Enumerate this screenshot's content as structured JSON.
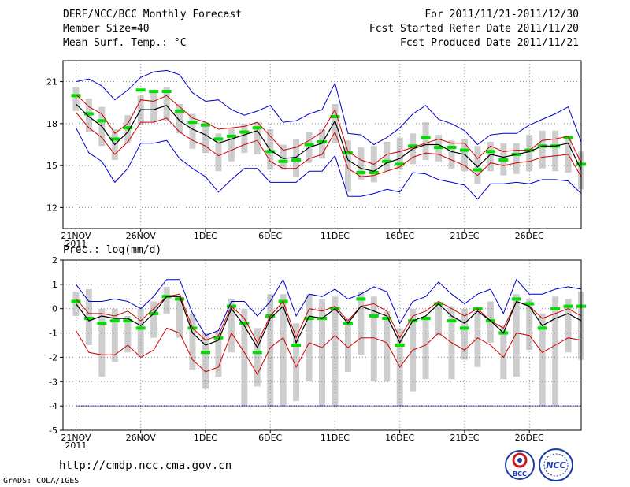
{
  "header": {
    "title": "DERF/NCC/BCC Monthly Forecast",
    "member": "Member Size=40",
    "temp_label": "Mean Surf. Temp.: °C",
    "period": "For 2011/11/21-2011/12/30",
    "started": "Fcst Started Refer Date 2011/11/20",
    "produced": "Fcst Produced Date 2011/11/21"
  },
  "prec_label": "Prec.: log(mm/d)",
  "footer": {
    "url": "http://cmdp.ncc.cma.gov.cn",
    "credit": "GrADS: COLA/IGES",
    "bcc_logo": "BCC",
    "ncc_logo": "NCC"
  },
  "colors": {
    "mean": "#000000",
    "spread": "#cc0000",
    "range": "#0000cc",
    "box": "#cdcdcd",
    "median": "#00dd00",
    "grid": "#888888",
    "ref": "#000088"
  },
  "chart_data": [
    {
      "type": "line",
      "title": "Mean Surf. Temp.: °C",
      "x_tick_labels": [
        "21NOV",
        "26NOV",
        "1DEC",
        "6DEC",
        "11DEC",
        "16DEC",
        "21DEC",
        "26DEC"
      ],
      "x_tick_days": [
        1,
        6,
        11,
        16,
        21,
        26,
        31,
        36
      ],
      "year_label": "2011",
      "xlim": [
        0,
        40
      ],
      "ylim": [
        10.5,
        22.5
      ],
      "yticks": [
        12,
        15,
        18,
        21
      ],
      "days": [
        1,
        2,
        3,
        4,
        5,
        6,
        7,
        8,
        9,
        10,
        11,
        12,
        13,
        14,
        15,
        16,
        17,
        18,
        19,
        20,
        21,
        22,
        23,
        24,
        25,
        26,
        27,
        28,
        29,
        30,
        31,
        32,
        33,
        34,
        35,
        36,
        37,
        38,
        39,
        40
      ],
      "series": [
        {
          "name": "max",
          "values": [
            21.0,
            21.2,
            20.7,
            19.7,
            20.4,
            21.3,
            21.7,
            21.8,
            21.5,
            20.2,
            19.6,
            19.7,
            19.0,
            18.6,
            18.9,
            19.3,
            18.1,
            18.2,
            18.7,
            19.0,
            20.9,
            17.3,
            17.2,
            16.5,
            17.0,
            17.7,
            18.7,
            19.3,
            18.3,
            18.0,
            17.5,
            16.5,
            17.2,
            17.3,
            17.3,
            17.9,
            18.3,
            18.7,
            19.2,
            16.7
          ]
        },
        {
          "name": "upper",
          "values": [
            20.1,
            19.2,
            18.7,
            17.3,
            18.0,
            19.7,
            19.6,
            20.0,
            19.2,
            18.4,
            18.1,
            17.6,
            17.7,
            17.8,
            18.1,
            17.1,
            16.1,
            16.3,
            16.8,
            17.4,
            19.0,
            16.0,
            15.4,
            15.1,
            15.8,
            16.0,
            16.3,
            16.6,
            16.9,
            16.6,
            16.6,
            15.5,
            16.4,
            16.0,
            16.1,
            16.1,
            16.8,
            16.9,
            17.1,
            15.2
          ]
        },
        {
          "name": "mean",
          "values": [
            19.4,
            18.5,
            17.8,
            16.5,
            17.4,
            19.0,
            19.0,
            19.3,
            18.2,
            17.6,
            17.2,
            16.6,
            16.9,
            17.2,
            17.5,
            16.1,
            15.5,
            15.6,
            16.3,
            16.6,
            18.2,
            15.4,
            14.8,
            14.6,
            15.2,
            15.5,
            16.2,
            16.5,
            16.5,
            16.0,
            15.8,
            14.9,
            15.8,
            15.6,
            15.8,
            16.0,
            16.4,
            16.4,
            16.6,
            14.7
          ]
        },
        {
          "name": "lower",
          "values": [
            18.8,
            17.7,
            17.0,
            15.8,
            16.7,
            18.1,
            18.1,
            18.4,
            17.4,
            16.8,
            16.4,
            15.7,
            16.1,
            16.5,
            16.8,
            15.3,
            14.8,
            14.8,
            15.5,
            15.8,
            17.4,
            14.8,
            14.2,
            14.3,
            14.6,
            14.9,
            15.6,
            15.9,
            15.8,
            15.4,
            15.0,
            14.3,
            15.2,
            15.0,
            15.2,
            15.3,
            15.6,
            15.7,
            15.8,
            14.2
          ]
        },
        {
          "name": "min",
          "values": [
            17.7,
            15.9,
            15.3,
            13.8,
            14.8,
            16.6,
            16.6,
            16.8,
            15.5,
            14.8,
            14.2,
            13.1,
            14.0,
            14.8,
            14.8,
            13.8,
            13.8,
            13.8,
            14.6,
            14.6,
            15.7,
            12.8,
            12.8,
            13.0,
            13.3,
            13.1,
            14.5,
            14.4,
            14.0,
            13.8,
            13.6,
            12.6,
            13.7,
            13.7,
            13.8,
            13.7,
            14.0,
            14.0,
            13.9,
            13.0
          ]
        },
        {
          "name": "box_top",
          "values": [
            20.6,
            19.8,
            19.2,
            17.6,
            18.6,
            20.0,
            20.4,
            20.6,
            19.4,
            18.7,
            18.1,
            17.3,
            17.7,
            18.0,
            18.1,
            17.6,
            16.5,
            16.9,
            17.4,
            17.6,
            19.4,
            16.8,
            16.3,
            16.4,
            16.7,
            17.0,
            17.3,
            18.1,
            17.2,
            16.8,
            16.9,
            16.4,
            16.7,
            16.6,
            16.6,
            17.2,
            17.5,
            17.5,
            17.0,
            16.0
          ]
        },
        {
          "name": "box_bottom",
          "values": [
            18.9,
            17.4,
            16.4,
            15.4,
            16.6,
            17.9,
            18.1,
            18.2,
            17.3,
            16.2,
            15.9,
            14.6,
            15.3,
            15.9,
            15.8,
            14.7,
            14.7,
            14.2,
            15.2,
            15.5,
            16.6,
            13.1,
            14.0,
            13.8,
            14.6,
            14.7,
            15.1,
            15.4,
            15.3,
            14.8,
            14.6,
            13.7,
            14.6,
            14.3,
            14.4,
            14.6,
            14.8,
            14.6,
            14.5,
            13.3
          ]
        },
        {
          "name": "median",
          "values": [
            20.0,
            18.7,
            18.2,
            16.9,
            17.7,
            20.4,
            20.3,
            20.3,
            18.9,
            18.1,
            17.9,
            16.9,
            17.1,
            17.4,
            17.7,
            16.0,
            15.3,
            15.4,
            16.5,
            16.7,
            18.5,
            15.9,
            14.5,
            14.5,
            15.3,
            15.1,
            16.4,
            17.0,
            16.3,
            16.3,
            16.1,
            14.7,
            16.0,
            15.4,
            15.8,
            16.1,
            16.4,
            16.4,
            17.0,
            15.1
          ]
        }
      ]
    },
    {
      "type": "line",
      "title": "Prec.: log(mm/d)",
      "x_tick_labels": [
        "21NOV",
        "26NOV",
        "1DEC",
        "6DEC",
        "11DEC",
        "16DEC",
        "21DEC",
        "26DEC"
      ],
      "x_tick_days": [
        1,
        6,
        11,
        16,
        21,
        26,
        31,
        36
      ],
      "year_label": "2011",
      "xlim": [
        0,
        40
      ],
      "ylim": [
        -5,
        2
      ],
      "yticks": [
        -5,
        -4,
        -3,
        -2,
        -1,
        0,
        1,
        2
      ],
      "reference_line": -4,
      "days": [
        1,
        2,
        3,
        4,
        5,
        6,
        7,
        8,
        9,
        10,
        11,
        12,
        13,
        14,
        15,
        16,
        17,
        18,
        19,
        20,
        21,
        22,
        23,
        24,
        25,
        26,
        27,
        28,
        29,
        30,
        31,
        32,
        33,
        34,
        35,
        36,
        37,
        38,
        39,
        40
      ],
      "series": [
        {
          "name": "max",
          "values": [
            1.0,
            0.3,
            0.3,
            0.4,
            0.3,
            0.0,
            0.5,
            1.2,
            1.2,
            -0.2,
            -1.1,
            -0.9,
            0.3,
            0.3,
            -0.3,
            0.3,
            1.2,
            -0.3,
            0.6,
            0.5,
            0.8,
            0.4,
            0.6,
            0.9,
            0.7,
            -0.6,
            0.3,
            0.5,
            1.1,
            0.6,
            0.2,
            0.6,
            0.8,
            -0.2,
            1.2,
            0.6,
            0.6,
            0.8,
            0.9,
            0.8
          ]
        },
        {
          "name": "upper",
          "values": [
            0.4,
            -0.2,
            -0.2,
            -0.3,
            -0.1,
            -0.5,
            0.0,
            0.5,
            0.6,
            -0.8,
            -1.3,
            -1.1,
            0.1,
            -0.4,
            -1.4,
            -0.3,
            0.3,
            -1.2,
            0.0,
            -0.1,
            0.1,
            -0.5,
            0.1,
            0.2,
            -0.1,
            -1.2,
            -0.3,
            -0.1,
            0.3,
            0.0,
            -0.3,
            0.0,
            -0.5,
            -0.8,
            0.3,
            0.1,
            -0.4,
            -0.2,
            0.0,
            -0.3
          ]
        },
        {
          "name": "mean",
          "values": [
            0.2,
            -0.5,
            -0.3,
            -0.4,
            -0.4,
            -0.7,
            -0.2,
            0.5,
            0.5,
            -1.0,
            -1.5,
            -1.3,
            0.0,
            -0.7,
            -1.6,
            -0.4,
            0.1,
            -1.4,
            -0.3,
            -0.4,
            0.0,
            -0.6,
            0.1,
            -0.1,
            -0.3,
            -1.4,
            -0.5,
            -0.3,
            0.2,
            -0.3,
            -0.6,
            -0.1,
            -0.5,
            -1.0,
            0.3,
            0.1,
            -0.7,
            -0.4,
            -0.2,
            -0.5
          ]
        },
        {
          "name": "lower",
          "values": [
            -0.9,
            -1.8,
            -1.9,
            -1.9,
            -1.5,
            -2.0,
            -1.7,
            -0.8,
            -1.0,
            -2.1,
            -2.6,
            -2.4,
            -1.0,
            -1.8,
            -2.7,
            -1.6,
            -1.2,
            -2.4,
            -1.4,
            -1.6,
            -1.1,
            -1.6,
            -1.2,
            -1.2,
            -1.4,
            -2.4,
            -1.7,
            -1.5,
            -1.0,
            -1.4,
            -1.7,
            -1.2,
            -1.5,
            -2.0,
            -1.0,
            -1.1,
            -1.8,
            -1.5,
            -1.2,
            -1.3
          ]
        },
        {
          "name": "box_top",
          "values": [
            0.7,
            0.8,
            0.0,
            0.0,
            -0.3,
            0.0,
            0.3,
            0.9,
            0.5,
            -0.2,
            -1.0,
            -0.9,
            0.4,
            0.0,
            -0.8,
            0.6,
            0.6,
            -0.6,
            0.6,
            0.4,
            0.5,
            -0.4,
            0.7,
            0.5,
            -0.1,
            -0.8,
            0.0,
            -0.3,
            0.1,
            0.1,
            0.0,
            0.0,
            0.3,
            -0.7,
            0.6,
            0.4,
            -0.2,
            0.5,
            0.4,
            0.7
          ]
        },
        {
          "name": "box_bottom",
          "values": [
            -0.3,
            -1.5,
            -2.8,
            -2.2,
            -1.8,
            -2.0,
            -1.2,
            -0.2,
            -1.2,
            -2.5,
            -3.3,
            -2.8,
            -1.8,
            -4.0,
            -3.2,
            -4.0,
            -4.0,
            -3.8,
            -3.0,
            -4.0,
            -4.0,
            -2.6,
            -1.9,
            -3.0,
            -3.0,
            -4.0,
            -3.4,
            -2.9,
            -1.1,
            -2.9,
            -2.1,
            -2.4,
            -1.4,
            -2.9,
            -2.8,
            -1.7,
            -4.0,
            -4.0,
            -1.8,
            -2.1
          ]
        },
        {
          "name": "median",
          "values": [
            0.3,
            -0.4,
            -0.6,
            -0.5,
            -0.5,
            -0.8,
            -0.2,
            0.5,
            0.4,
            -0.8,
            -1.8,
            -1.2,
            0.1,
            -0.6,
            -1.8,
            -0.3,
            0.3,
            -1.5,
            -0.4,
            -0.4,
            0.0,
            -0.6,
            0.4,
            -0.3,
            -0.4,
            -1.5,
            -0.5,
            -0.4,
            0.2,
            -0.5,
            -0.8,
            0.0,
            -0.5,
            -1.0,
            0.4,
            0.2,
            -0.8,
            0.0,
            0.1,
            0.1
          ]
        }
      ]
    }
  ]
}
